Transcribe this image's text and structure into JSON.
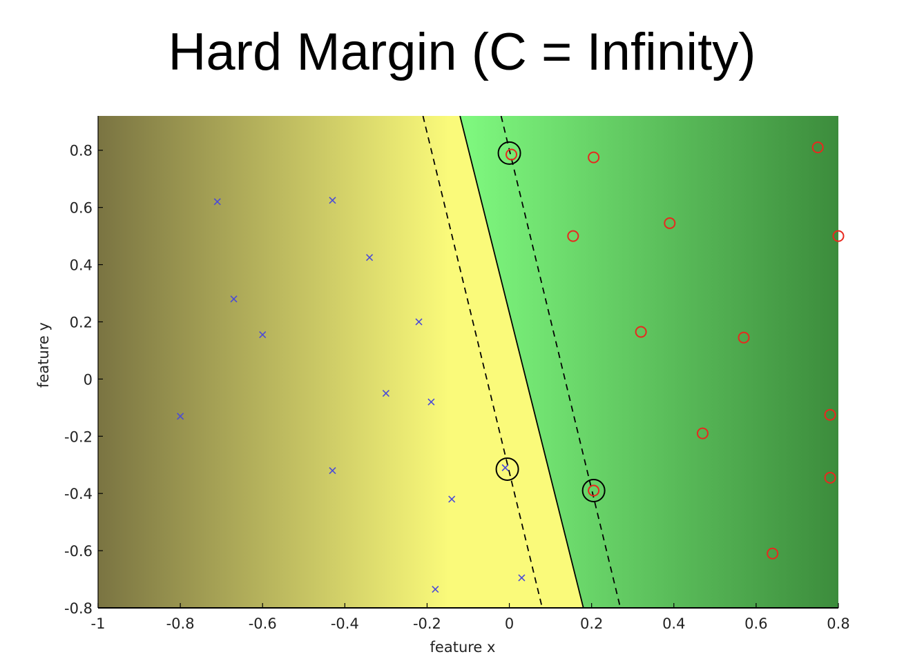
{
  "slide": {
    "title": "Hard Margin (C = Infinity)"
  },
  "chart_data": {
    "type": "scatter",
    "title": "Hard Margin (C = Infinity)",
    "xlabel": "feature x",
    "ylabel": "feature y",
    "xlim": [
      -1,
      0.8
    ],
    "ylim": [
      -0.8,
      0.92
    ],
    "xticks": [
      -1,
      -0.8,
      -0.6,
      -0.4,
      -0.2,
      0,
      0.2,
      0.4,
      0.6,
      0.8
    ],
    "xtick_labels": [
      "-1",
      "-0.8",
      "-0.6",
      "-0.4",
      "-0.2",
      "0",
      "0.2",
      "0.4",
      "0.6",
      "0.8"
    ],
    "yticks": [
      -0.8,
      -0.6,
      -0.4,
      -0.2,
      0,
      0.2,
      0.4,
      0.6,
      0.8
    ],
    "ytick_labels": [
      "-0.8",
      "-0.6",
      "-0.4",
      "-0.2",
      "0",
      "0.2",
      "0.4",
      "0.6",
      "0.8"
    ],
    "grid": false,
    "colors": {
      "negative_marker": "#4a4ad8",
      "positive_marker": "#e8281e",
      "support_ring": "#000000",
      "far_left": "#7a7442",
      "near_left": "#fafa7a",
      "near_right": "#7ef77e",
      "far_right": "#3c8c3c"
    },
    "decision_boundary": {
      "points": [
        [
          -0.12,
          0.92
        ],
        [
          0.18,
          -0.8
        ]
      ]
    },
    "margin_lines": [
      {
        "points": [
          [
            -0.21,
            0.92
          ],
          [
            0.08,
            -0.8
          ]
        ]
      },
      {
        "points": [
          [
            -0.02,
            0.92
          ],
          [
            0.27,
            -0.8
          ]
        ]
      }
    ],
    "series": [
      {
        "marker": "x",
        "points": [
          [
            -0.8,
            -0.13
          ],
          [
            -0.71,
            0.62
          ],
          [
            -0.67,
            0.28
          ],
          [
            -0.6,
            0.155
          ],
          [
            -0.43,
            0.625
          ],
          [
            -0.34,
            0.425
          ],
          [
            -0.22,
            0.2
          ],
          [
            -0.3,
            -0.05
          ],
          [
            -0.19,
            -0.08
          ],
          [
            -0.43,
            -0.32
          ],
          [
            -0.14,
            -0.42
          ],
          [
            -0.01,
            -0.31
          ],
          [
            0.03,
            -0.695
          ],
          [
            -0.18,
            -0.735
          ]
        ]
      },
      {
        "marker": "o",
        "points": [
          [
            0.005,
            0.785
          ],
          [
            0.205,
            0.775
          ],
          [
            0.75,
            0.81
          ],
          [
            0.155,
            0.5
          ],
          [
            0.39,
            0.545
          ],
          [
            0.8,
            0.5
          ],
          [
            0.32,
            0.165
          ],
          [
            0.57,
            0.145
          ],
          [
            0.47,
            -0.19
          ],
          [
            0.78,
            -0.125
          ],
          [
            0.78,
            -0.345
          ],
          [
            0.205,
            -0.39
          ],
          [
            0.64,
            -0.61
          ]
        ]
      }
    ],
    "support_vectors": [
      [
        0.0,
        0.79
      ],
      [
        -0.005,
        -0.315
      ],
      [
        0.205,
        -0.39
      ]
    ]
  }
}
